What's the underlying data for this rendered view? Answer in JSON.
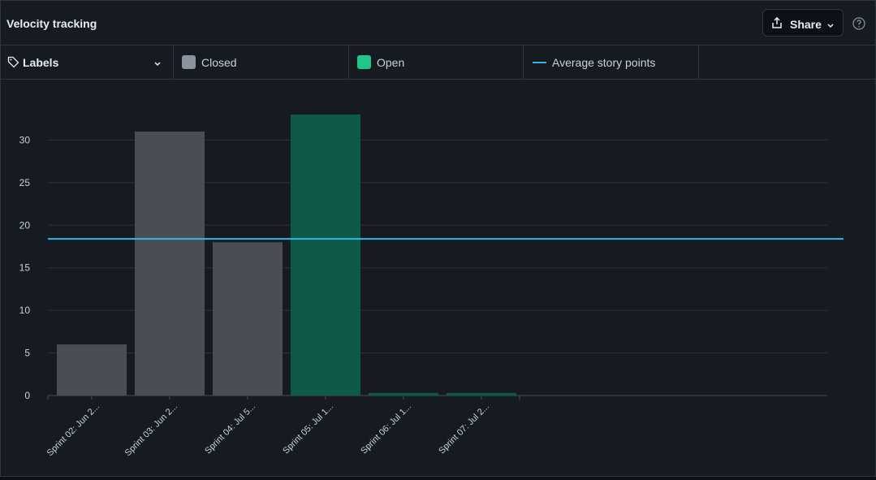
{
  "header": {
    "title": "Velocity tracking",
    "share_label": "Share"
  },
  "legend": {
    "labels_dropdown": "Labels",
    "items": [
      {
        "label": "Closed",
        "color": "#8b949e"
      },
      {
        "label": "Open",
        "color": "#1fc687"
      },
      {
        "label": "Average story points",
        "color": "#39b5e8"
      }
    ]
  },
  "chart_data": {
    "type": "bar",
    "categories": [
      "Sprint 02: Jun 2...",
      "Sprint 03: Jun 2...",
      "Sprint 04: Jul 5...",
      "Sprint 05: Jul 1...",
      "Sprint 06: Jul 1...",
      "Sprint 07: Jul 2..."
    ],
    "series": [
      {
        "name": "Closed",
        "values": [
          6,
          31,
          18,
          0,
          0,
          0
        ],
        "color": "#4a4e54"
      },
      {
        "name": "Open",
        "values": [
          0,
          0,
          0,
          33,
          0.3,
          0.3
        ],
        "color": "#0e5a48"
      }
    ],
    "average": {
      "name": "Average story points",
      "value": 18.4,
      "color": "#39b5e8"
    },
    "yticks": [
      0,
      5,
      10,
      15,
      20,
      25,
      30
    ],
    "ylim": [
      0,
      35
    ],
    "grid": true,
    "legend": "top"
  }
}
